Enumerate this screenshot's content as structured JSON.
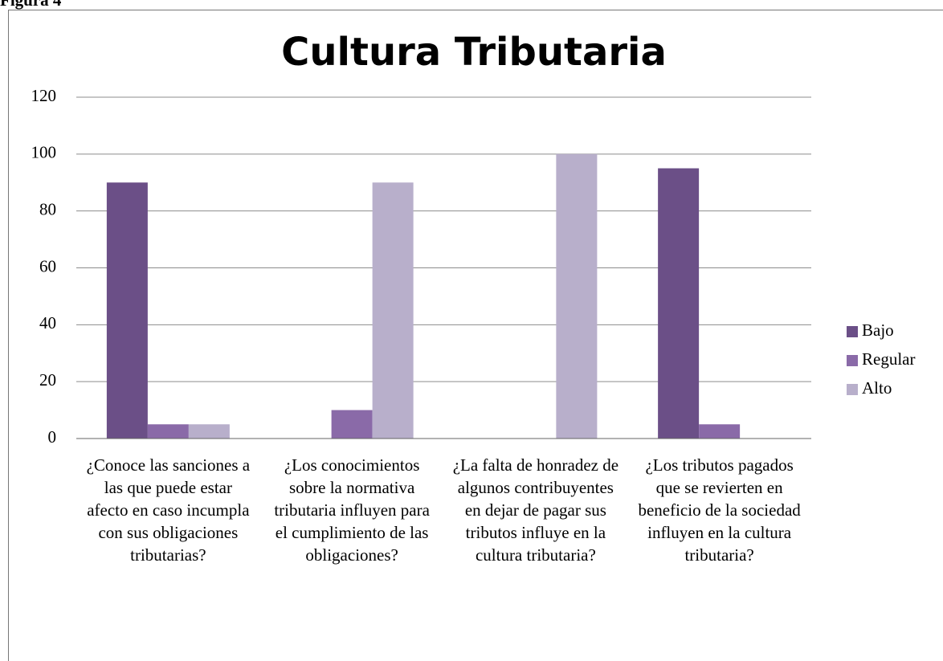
{
  "figure_label": "Figura 4",
  "chart_data": {
    "type": "bar",
    "title": "Cultura Tributaria",
    "categories": [
      "¿Conoce las sanciones a las que puede estar afecto en caso incumpla con sus obligaciones tributarias?",
      "¿Los conocimientos sobre la normativa tributaria influyen para el cumplimiento de las obligaciones?",
      "¿La falta de honradez de algunos contribuyentes en dejar de pagar sus tributos influye en la cultura tributaria?",
      "¿Los tributos pagados que se revierten en beneficio de la sociedad influyen en la cultura tributaria?"
    ],
    "series": [
      {
        "name": "Bajo",
        "color": "#6b4f87",
        "values": [
          90,
          null,
          null,
          95
        ]
      },
      {
        "name": "Regular",
        "color": "#8a6aa8",
        "values": [
          5,
          10,
          null,
          5
        ]
      },
      {
        "name": "Alto",
        "color": "#b8afcb",
        "values": [
          5,
          90,
          100,
          null
        ]
      }
    ],
    "ylim": [
      0,
      120
    ],
    "yticks": [
      0,
      20,
      40,
      60,
      80,
      100,
      120
    ],
    "grid": true,
    "legend": "right"
  }
}
